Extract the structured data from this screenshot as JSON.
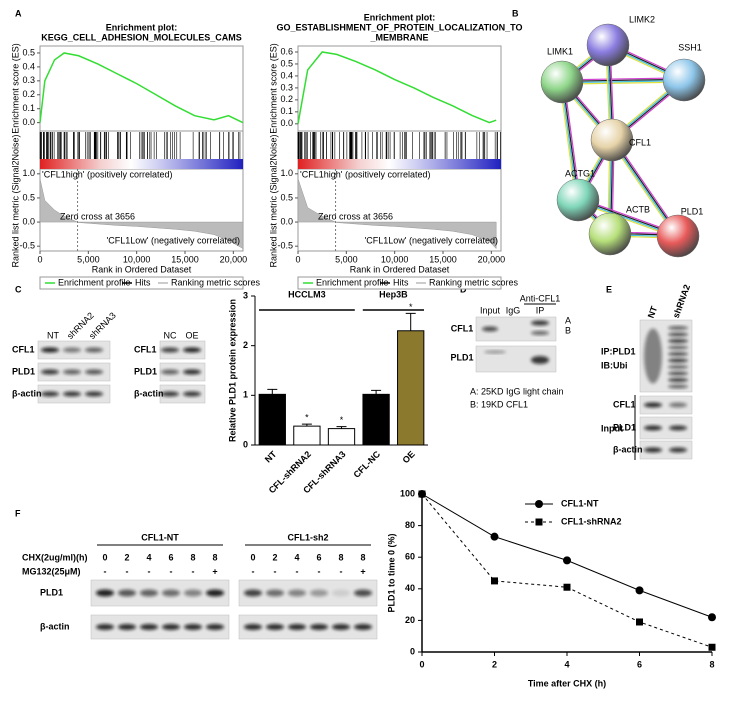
{
  "panels": [
    "A",
    "B",
    "C",
    "D",
    "E",
    "F"
  ],
  "chart_data": [
    {
      "type": "gsea",
      "title": [
        "Enrichment plot:",
        "KEGG_CELL_ADHESION_MOLECULES_CAMS"
      ],
      "ylabel": "Enrichment score (ES)",
      "metric_label": "Ranked list metric (Signal2Noise)",
      "xlabel": "Rank in Ordered Dataset",
      "x": [
        0,
        500,
        1500,
        2500,
        4000,
        6000,
        8000,
        10000,
        12000,
        14000,
        16000,
        18000,
        19500,
        21000
      ],
      "series": [
        {
          "name": "Enrichment profile",
          "color": "#33dd33",
          "values": [
            0,
            0.3,
            0.45,
            0.5,
            0.48,
            0.42,
            0.35,
            0.28,
            0.2,
            0.12,
            0.05,
            0.02,
            0.05,
            0
          ]
        }
      ],
      "metric_values": [
        0.9,
        0.45,
        0.25,
        0.12,
        -0.01,
        -0.04,
        -0.07,
        -0.09,
        -0.12,
        -0.15,
        -0.19,
        -0.26,
        -0.38,
        -0.55
      ],
      "hits_name": "Hits",
      "metric_name": "Ranking metric scores",
      "positive_label": "'CFL1high' (positively correlated)",
      "zero_cross": "Zero cross at 3656",
      "negative_label": "'CFL1Low' (negatively correlated)",
      "xlim": [
        0,
        21000
      ],
      "xticks": [
        0,
        {
          "value": 5000,
          "label": "5,000"
        },
        {
          "value": 10000,
          "label": "10,000"
        },
        {
          "value": 15000,
          "label": "15,000"
        },
        {
          "value": 20000,
          "label": "20,000"
        }
      ],
      "ylim": [
        -0.06,
        0.55
      ],
      "yticks": [
        {
          "value": 0,
          "label": "0.0"
        },
        0.1,
        0.2,
        0.3,
        0.4,
        0.5
      ],
      "metric_ylim": [
        -0.6,
        1.1
      ],
      "metric_yticks": [
        {
          "value": 1,
          "label": "1.0"
        },
        0.5,
        {
          "value": 0,
          "label": "0.0"
        },
        -0.5
      ]
    },
    {
      "type": "gsea",
      "title": [
        "Enrichment plot:",
        "GO_ESTABLISHMENT_OF_PROTEIN_LOCALIZATION_TO",
        "_MEMBRANE"
      ],
      "ylabel": "Enrichment score (ES)",
      "metric_label": "Ranked list metric (Signal2Noise)",
      "xlabel": "Rank in Ordered Dataset",
      "x": [
        0,
        1000,
        2500,
        4000,
        6000,
        8000,
        10000,
        12000,
        14000,
        16000,
        18000,
        19800,
        20500
      ],
      "series": [
        {
          "name": "Enrichment profile",
          "color": "#33dd33",
          "values": [
            0,
            0.45,
            0.6,
            0.58,
            0.52,
            0.45,
            0.37,
            0.3,
            0.22,
            0.15,
            0.07,
            0.01,
            0.03
          ]
        }
      ],
      "metric_values": [
        0.9,
        0.3,
        0.12,
        -0.01,
        -0.04,
        -0.07,
        -0.09,
        -0.12,
        -0.15,
        -0.19,
        -0.26,
        -0.4,
        -0.55
      ],
      "hits_name": "Hits",
      "metric_name": "Ranking metric scores",
      "positive_label": "'CFL1high' (positively correlated)",
      "zero_cross": "Zero cross at 3656",
      "negative_label": "'CFL1Low' (negatively correlated)",
      "xlim": [
        0,
        21000
      ],
      "xticks": [
        0,
        {
          "value": 5000,
          "label": "5,000"
        },
        {
          "value": 10000,
          "label": "10,000"
        },
        {
          "value": 15000,
          "label": "15,000"
        },
        {
          "value": 20000,
          "label": "20,000"
        }
      ],
      "ylim": [
        -0.06,
        0.65
      ],
      "yticks": [
        {
          "value": 0,
          "label": "0.0"
        },
        0.1,
        0.2,
        0.3,
        0.4,
        0.5,
        0.6
      ],
      "metric_ylim": [
        -0.6,
        1.1
      ],
      "metric_yticks": [
        {
          "value": 1,
          "label": "1.0"
        },
        0.5,
        {
          "value": 0,
          "label": "0.0"
        },
        -0.5
      ]
    },
    {
      "type": "bar",
      "ylabel": "Relative PLD1 protein expression",
      "categories": [
        "NT",
        "CFL-shRNA2",
        "CFL-shRNA3",
        "CFL-NC",
        "OE"
      ],
      "values": [
        1.02,
        0.38,
        0.33,
        1.02,
        2.3
      ],
      "errors": [
        0.1,
        0.04,
        0.04,
        0.08,
        0.35
      ],
      "colors": [
        "#000000",
        "#ffffff",
        "#ffffff",
        "#000000",
        "#8b7a2e"
      ],
      "significance": [
        null,
        "*",
        "*",
        null,
        "*"
      ],
      "groups": [
        "HCCLM3",
        "Hep3B"
      ],
      "ylim": [
        0,
        3
      ],
      "yticks": [
        0,
        1,
        2,
        3
      ]
    },
    {
      "type": "line",
      "xlabel": "Time after CHX (h)",
      "ylabel": "PLD1 to time 0 (%)",
      "x": [
        0,
        2,
        4,
        6,
        8
      ],
      "series": [
        {
          "name": "CFL1-NT",
          "color": "#000000",
          "marker": "circle",
          "dashed": false,
          "values": [
            100,
            73,
            58,
            39,
            22
          ]
        },
        {
          "name": "CFL1-shRNA2",
          "color": "#000000",
          "marker": "square",
          "dashed": true,
          "values": [
            100,
            45,
            41,
            19,
            3
          ]
        }
      ],
      "xlim": [
        0,
        8
      ],
      "xticks": [
        0,
        2,
        4,
        6,
        8
      ],
      "ylim": [
        0,
        100
      ],
      "yticks": [
        0,
        20,
        40,
        60,
        80,
        100
      ],
      "legend": "upper right"
    }
  ],
  "network": {
    "nodes": [
      {
        "label": "LIMK2",
        "color": "#8a7de0"
      },
      {
        "label": "LIMK1",
        "color": "#8fd68a"
      },
      {
        "label": "SSH1",
        "color": "#8ec6ea"
      },
      {
        "label": "CFL1",
        "color": "#e6d3a8"
      },
      {
        "label": "ACTG1",
        "color": "#7fd6b8"
      },
      {
        "label": "ACTB",
        "color": "#b6df7a"
      },
      {
        "label": "PLD1",
        "color": "#e85a5a"
      }
    ]
  },
  "blot_c": {
    "lanes_a": [
      "NT",
      "shRNA2",
      "shRNA3"
    ],
    "lanes_b": [
      "NC",
      "OE"
    ],
    "rows": [
      "CFL1",
      "PLD1",
      "β-actin"
    ]
  },
  "blot_d": {
    "antibody": "Anti-CFL1",
    "lanes": [
      "Input",
      "IgG",
      "IP"
    ],
    "rows": [
      "CFL1",
      "PLD1"
    ],
    "markers": [
      "A",
      "B"
    ],
    "notes": [
      "A: 25KD IgG light chain",
      "B: 19KD CFL1"
    ]
  },
  "blot_e": {
    "lanes": [
      "NT",
      "shRNA2"
    ],
    "ip_rows": [
      "IP:PLD1",
      "IB:Ubi"
    ],
    "rows": [
      "CFL1",
      "PLD1",
      "β-actin"
    ],
    "input_label": "Input"
  },
  "blot_f": {
    "groups": [
      "CFL1-NT",
      "CFL1-sh2"
    ],
    "chx_label": "CHX(2ug/ml)(h)",
    "mg_label": "MG132(25μM)",
    "chx": [
      "0",
      "2",
      "4",
      "6",
      "8",
      "8"
    ],
    "mg": [
      "-",
      "-",
      "-",
      "-",
      "-",
      "+"
    ],
    "rows": [
      "PLD1",
      "β-actin"
    ]
  }
}
